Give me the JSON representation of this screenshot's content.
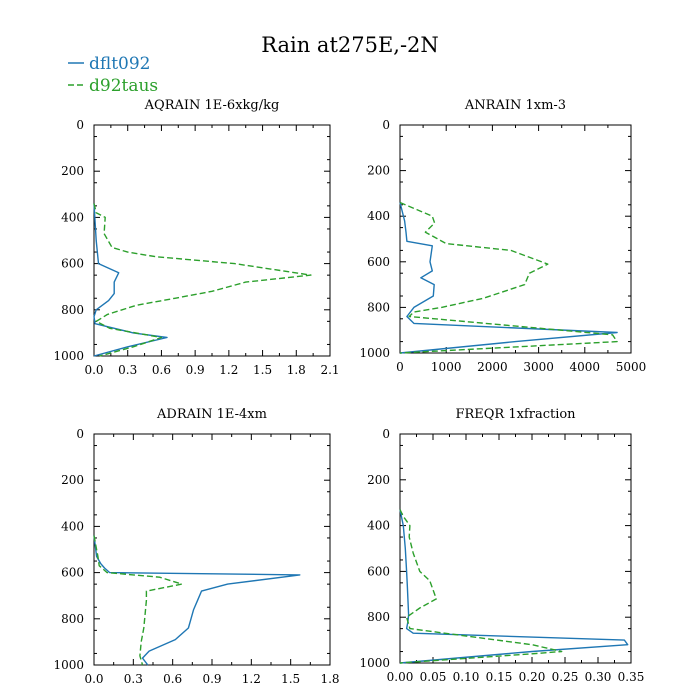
{
  "figure": {
    "title": "Rain at275E,-2N",
    "legend": [
      {
        "label": "dflt092",
        "color": "#1f77b4",
        "dash": "solid"
      },
      {
        "label": "d92taus",
        "color": "#2ca02c",
        "dash": "dashed"
      }
    ]
  },
  "chart_data": [
    {
      "type": "line",
      "title": "AQRAIN  1E-6xkg/kg",
      "xlim": [
        0,
        2.1
      ],
      "xticks": [
        "0.0",
        "0.3",
        "0.6",
        "0.9",
        "1.2",
        "1.5",
        "1.8",
        "2.1"
      ],
      "xtick_values": [
        0,
        0.3,
        0.6,
        0.9,
        1.2,
        1.5,
        1.8,
        2.1
      ],
      "ylim": [
        1000,
        0
      ],
      "yticks": [
        0,
        200,
        400,
        600,
        800,
        1000
      ],
      "series": [
        {
          "name": "dflt092",
          "x": [
            0,
            0.01,
            0.02,
            0.04,
            0.22,
            0.18,
            0.18,
            0.13,
            0.02,
            0,
            0.01,
            0.35,
            0.65,
            0.3,
            0
          ],
          "y": [
            340,
            420,
            500,
            600,
            640,
            680,
            730,
            760,
            800,
            830,
            860,
            900,
            920,
            960,
            1000
          ]
        },
        {
          "name": "d92taus",
          "x": [
            0,
            0.02,
            0.1,
            0.09,
            0.16,
            0.3,
            0.55,
            1.25,
            1.93,
            1.35,
            1.05,
            0.72,
            0.38,
            0.12,
            0.02,
            0.14,
            0.6,
            0.35,
            0.05
          ],
          "y": [
            340,
            380,
            400,
            470,
            530,
            550,
            570,
            600,
            650,
            680,
            720,
            750,
            780,
            820,
            850,
            880,
            920,
            960,
            1000
          ]
        }
      ]
    },
    {
      "type": "line",
      "title": "ANRAIN  1xm-3",
      "xlim": [
        0,
        5000
      ],
      "xticks": [
        "0",
        "1000",
        "2000",
        "3000",
        "4000",
        "5000"
      ],
      "xtick_values": [
        0,
        1000,
        2000,
        3000,
        4000,
        5000
      ],
      "ylim": [
        1000,
        0
      ],
      "yticks": [
        0,
        200,
        400,
        600,
        800,
        1000
      ],
      "series": [
        {
          "name": "dflt092",
          "x": [
            0,
            100,
            130,
            150,
            700,
            650,
            700,
            450,
            740,
            720,
            300,
            150,
            300,
            4700,
            2500,
            0
          ],
          "y": [
            340,
            420,
            470,
            510,
            530,
            600,
            640,
            670,
            700,
            750,
            800,
            840,
            870,
            910,
            950,
            1000
          ]
        },
        {
          "name": "d92taus",
          "x": [
            0,
            700,
            750,
            550,
            1000,
            2400,
            3200,
            2800,
            2700,
            1800,
            900,
            300,
            200,
            4600,
            4700,
            0
          ],
          "y": [
            340,
            400,
            430,
            470,
            520,
            550,
            610,
            650,
            700,
            760,
            800,
            820,
            840,
            920,
            950,
            1000
          ]
        }
      ]
    },
    {
      "type": "line",
      "title": "ADRAIN  1E-4xm",
      "xlim": [
        0,
        1.8
      ],
      "xticks": [
        "0.0",
        "0.3",
        "0.6",
        "0.9",
        "1.2",
        "1.5",
        "1.8"
      ],
      "xtick_values": [
        0,
        0.3,
        0.6,
        0.9,
        1.2,
        1.5,
        1.8
      ],
      "ylim": [
        1000,
        0
      ],
      "yticks": [
        0,
        200,
        400,
        600,
        800,
        1000
      ],
      "series": [
        {
          "name": "dflt092",
          "x": [
            0,
            0.02,
            0.05,
            0.08,
            0.12,
            1.57,
            1.02,
            0.82,
            0.79,
            0.76,
            0.74,
            0.72,
            0.62,
            0.42,
            0.37,
            0.41
          ],
          "y": [
            440,
            530,
            560,
            580,
            600,
            610,
            650,
            680,
            720,
            760,
            800,
            840,
            890,
            940,
            970,
            1000
          ]
        },
        {
          "name": "d92taus",
          "x": [
            0,
            0.03,
            0.04,
            0.1,
            0.5,
            0.67,
            0.4,
            0.4,
            0.39,
            0.38,
            0.36,
            0.35,
            0.37
          ],
          "y": [
            440,
            530,
            570,
            600,
            620,
            650,
            680,
            720,
            780,
            840,
            900,
            960,
            1000
          ]
        }
      ]
    },
    {
      "type": "line",
      "title": "FREQR  1xfraction",
      "xlim": [
        0,
        0.35
      ],
      "xticks": [
        "0.00",
        "0.05",
        "0.10",
        "0.15",
        "0.20",
        "0.25",
        "0.30",
        "0.35"
      ],
      "xtick_values": [
        0,
        0.05,
        0.1,
        0.15,
        0.2,
        0.25,
        0.3,
        0.35
      ],
      "ylim": [
        1000,
        0
      ],
      "yticks": [
        0,
        200,
        400,
        600,
        800,
        1000
      ],
      "series": [
        {
          "name": "dflt092",
          "x": [
            0,
            0.005,
            0.008,
            0.01,
            0.011,
            0.012,
            0.013,
            0.012,
            0.01,
            0.02,
            0.34,
            0.345,
            0.2,
            0
          ],
          "y": [
            330,
            400,
            500,
            600,
            660,
            720,
            790,
            820,
            850,
            870,
            900,
            920,
            950,
            1000
          ]
        },
        {
          "name": "d92taus",
          "x": [
            0,
            0.005,
            0.015,
            0.014,
            0.02,
            0.025,
            0.03,
            0.045,
            0.05,
            0.055,
            0.03,
            0.01,
            0.015,
            0.2,
            0.245,
            0.2,
            0
          ],
          "y": [
            330,
            360,
            400,
            450,
            520,
            560,
            600,
            640,
            680,
            720,
            760,
            800,
            850,
            920,
            950,
            960,
            1000
          ]
        }
      ]
    }
  ]
}
